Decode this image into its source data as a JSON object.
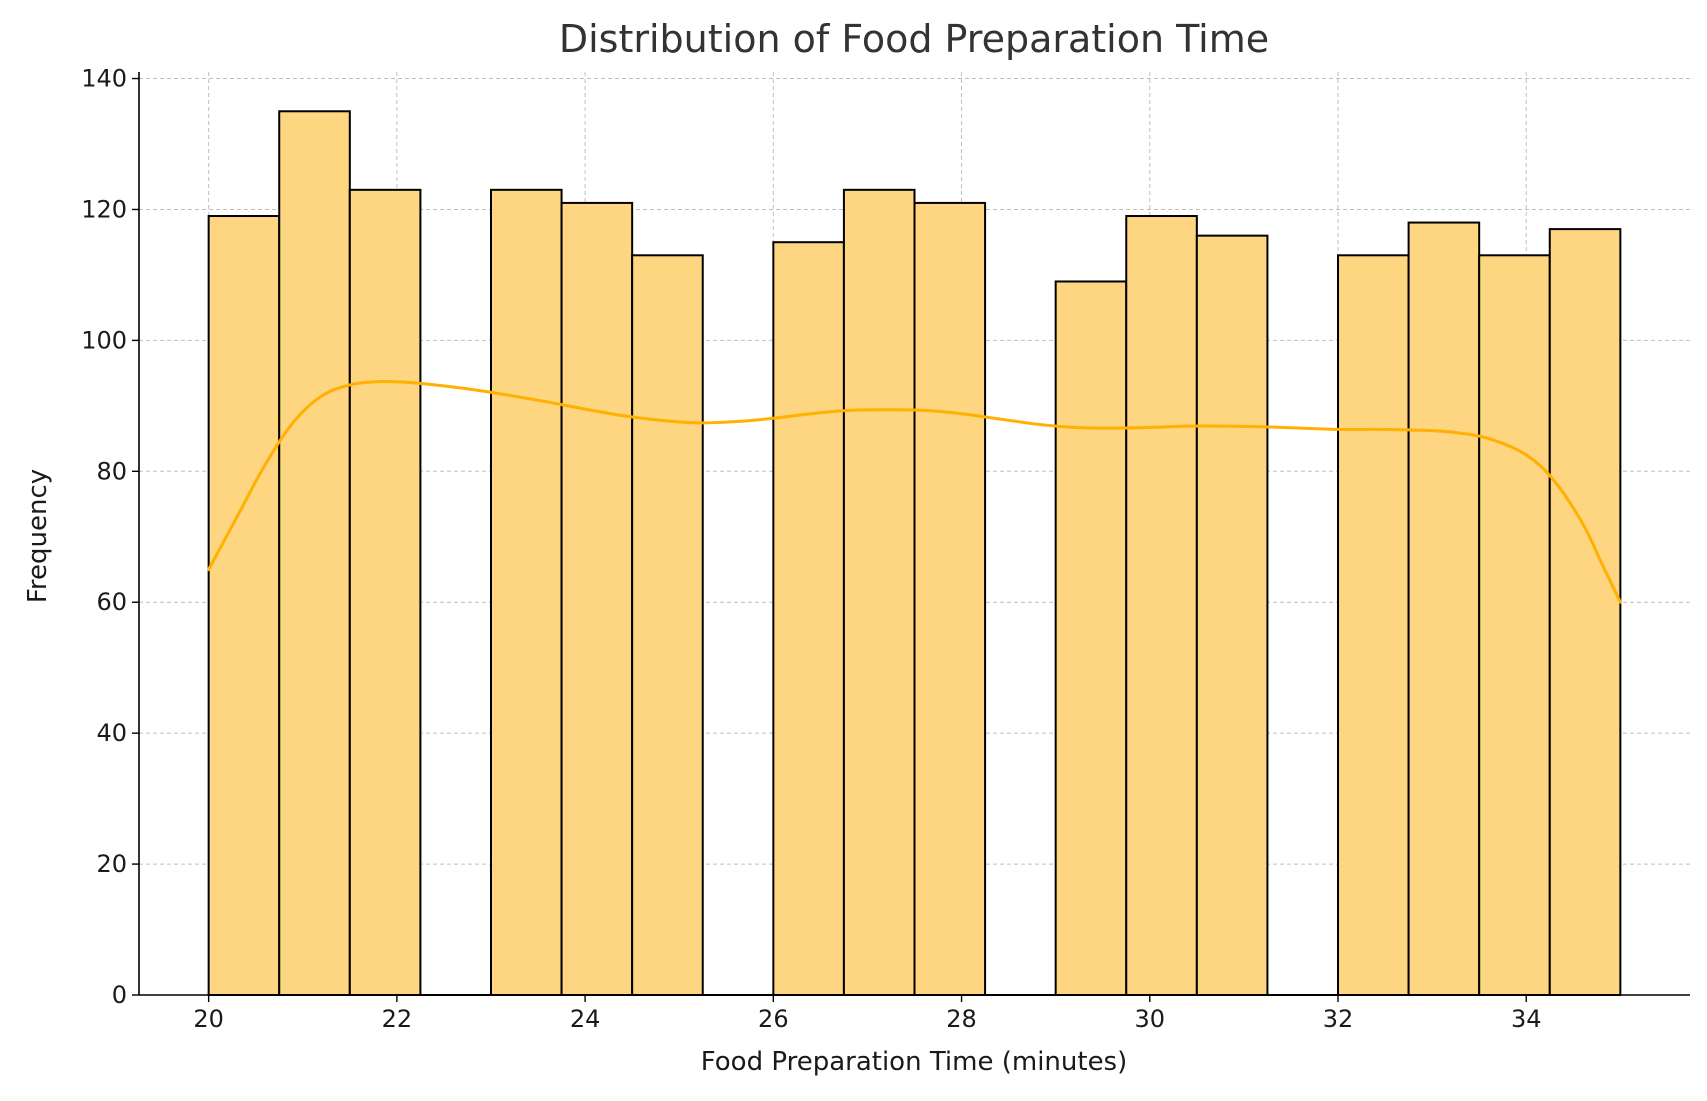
{
  "chart_data": {
    "type": "bar",
    "title": "Distribution of Food Preparation Time",
    "xlabel": "Food Preparation Time (minutes)",
    "ylabel": "Frequency",
    "xlim": [
      19.26,
      35.74
    ],
    "ylim": [
      0,
      141
    ],
    "xticks": [
      20,
      22,
      24,
      26,
      28,
      30,
      32,
      34
    ],
    "yticks": [
      0,
      20,
      40,
      60,
      80,
      100,
      120,
      140
    ],
    "grid": true,
    "bins": {
      "edges": [
        20,
        20.75,
        21.5,
        22.25,
        23,
        23.75,
        24.5,
        25.25,
        26,
        26.75,
        27.5,
        28.25,
        29,
        29.75,
        30.5,
        31.25,
        32,
        32.75,
        33.5,
        34.25,
        35
      ],
      "values": [
        119,
        135,
        123,
        0,
        123,
        121,
        113,
        0,
        115,
        123,
        121,
        0,
        109,
        119,
        116,
        0,
        113,
        118,
        113,
        117
      ]
    },
    "kde_curve": {
      "x": [
        20,
        20.3,
        20.6,
        20.9,
        21.2,
        21.5,
        21.8,
        22.1,
        22.4,
        22.8,
        23.2,
        23.6,
        24,
        24.4,
        24.8,
        25.2,
        25.6,
        26,
        26.4,
        26.8,
        27.2,
        27.6,
        28,
        28.4,
        28.8,
        29.2,
        29.6,
        30,
        30.4,
        30.8,
        31.2,
        31.6,
        32,
        32.4,
        32.8,
        33.2,
        33.6,
        34,
        34.3,
        34.6,
        34.8,
        35
      ],
      "y": [
        65,
        73,
        81,
        87.5,
        91.5,
        93.2,
        93.7,
        93.6,
        93.2,
        92.5,
        91.6,
        90.6,
        89.5,
        88.5,
        87.8,
        87.4,
        87.6,
        88.1,
        88.8,
        89.3,
        89.4,
        89.3,
        88.8,
        88.0,
        87.2,
        86.7,
        86.6,
        86.7,
        86.9,
        86.9,
        86.8,
        86.6,
        86.4,
        86.4,
        86.3,
        86.0,
        85.0,
        82.5,
        78.5,
        72,
        66,
        60
      ]
    },
    "colors": {
      "bar_fill": "#fed580",
      "bar_edge": "#000000",
      "kde_line": "#ffb000"
    }
  }
}
